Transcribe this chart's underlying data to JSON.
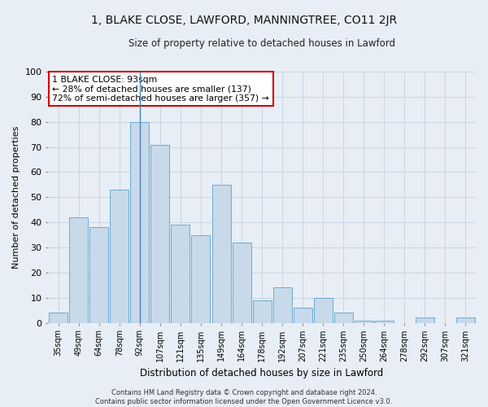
{
  "title": "1, BLAKE CLOSE, LAWFORD, MANNINGTREE, CO11 2JR",
  "subtitle": "Size of property relative to detached houses in Lawford",
  "xlabel": "Distribution of detached houses by size in Lawford",
  "ylabel": "Number of detached properties",
  "categories": [
    "35sqm",
    "49sqm",
    "64sqm",
    "78sqm",
    "92sqm",
    "107sqm",
    "121sqm",
    "135sqm",
    "149sqm",
    "164sqm",
    "178sqm",
    "192sqm",
    "207sqm",
    "221sqm",
    "235sqm",
    "250sqm",
    "264sqm",
    "278sqm",
    "292sqm",
    "307sqm",
    "321sqm"
  ],
  "values": [
    4,
    42,
    38,
    53,
    80,
    71,
    39,
    35,
    55,
    32,
    9,
    14,
    6,
    10,
    4,
    1,
    1,
    0,
    2,
    0,
    2
  ],
  "bar_color": "#c8d9ea",
  "bar_edge_color": "#6aaad4",
  "highlight_bar_index": 4,
  "highlight_line_color": "#4a7fb5",
  "property_label": "1 BLAKE CLOSE: 93sqm",
  "annotation_line1": "← 28% of detached houses are smaller (137)",
  "annotation_line2": "72% of semi-detached houses are larger (357) →",
  "annotation_box_color": "#ffffff",
  "annotation_box_edge_color": "#cc0000",
  "ylim": [
    0,
    100
  ],
  "yticks": [
    0,
    10,
    20,
    30,
    40,
    50,
    60,
    70,
    80,
    90,
    100
  ],
  "grid_color": "#c8d4e4",
  "background_color": "#e8eef5",
  "footer_line1": "Contains HM Land Registry data © Crown copyright and database right 2024.",
  "footer_line2": "Contains public sector information licensed under the Open Government Licence v3.0."
}
